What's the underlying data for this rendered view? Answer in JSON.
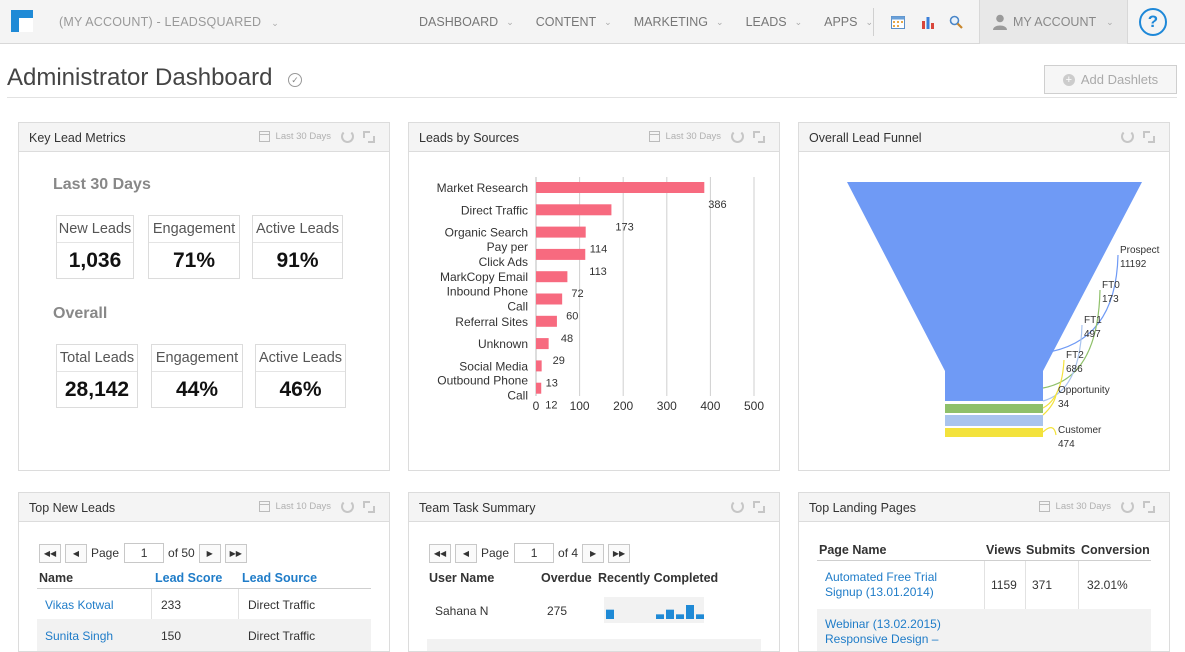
{
  "topbar": {
    "account_title": "(MY ACCOUNT) - LEADSQUARED",
    "nav": [
      "DASHBOARD",
      "CONTENT",
      "MARKETING",
      "LEADS",
      "APPS"
    ],
    "my_account": "MY ACCOUNT",
    "help": "?"
  },
  "page": {
    "title": "Administrator Dashboard",
    "add_dashlets": "Add Dashlets"
  },
  "key_metrics": {
    "title": "Key Lead Metrics",
    "range": "Last 30 Days",
    "section_recent": "Last 30 Days",
    "recent": [
      {
        "label": "New Leads",
        "value": "1,036"
      },
      {
        "label": "Engagement",
        "value": "71%"
      },
      {
        "label": "Active Leads",
        "value": "91%"
      }
    ],
    "section_overall": "Overall",
    "overall": [
      {
        "label": "Total Leads",
        "value": "28,142"
      },
      {
        "label": "Engagement",
        "value": "44%"
      },
      {
        "label": "Active Leads",
        "value": "46%"
      }
    ]
  },
  "sources": {
    "title": "Leads by Sources",
    "range": "Last 30 Days"
  },
  "funnel": {
    "title": "Overall Lead Funnel",
    "stage_colors": [
      "#6f9af5",
      "#8fc06a",
      "#a9c4ee",
      "#f3e23c"
    ]
  },
  "chart_data": [
    {
      "type": "bar",
      "orientation": "horizontal",
      "categories": [
        "Market Research",
        "Direct Traffic",
        "Organic Search",
        "Pay per Click Ads",
        "MarkCopy Email",
        "Inbound Phone Call",
        "Referral Sites",
        "Unknown",
        "Social Media",
        "Outbound Phone Call"
      ],
      "values": [
        386,
        173,
        114,
        113,
        72,
        60,
        48,
        29,
        13,
        12
      ],
      "xlim": [
        0,
        500
      ],
      "xticks": [
        0,
        100,
        200,
        300,
        400,
        500
      ],
      "grid": true,
      "bar_color": "#f76a7f"
    },
    {
      "type": "funnel",
      "stages": [
        {
          "label": "Prospect",
          "value": 11192
        },
        {
          "label": "FT0",
          "value": 173
        },
        {
          "label": "FT1",
          "value": 497
        },
        {
          "label": "FT2",
          "value": 686
        },
        {
          "label": "Opportunity",
          "value": 34
        },
        {
          "label": "Customer",
          "value": 474
        }
      ]
    }
  ],
  "new_leads": {
    "title": "Top New Leads",
    "range": "Last 10 Days",
    "pager": {
      "page_label": "Page",
      "page": "1",
      "of": "of 50"
    },
    "headers": [
      "Name",
      "Lead Score",
      "Lead Source"
    ],
    "rows": [
      {
        "name": "Vikas Kotwal",
        "score": "233",
        "source": "Direct Traffic"
      },
      {
        "name": "Sunita Singh",
        "score": "150",
        "source": "Direct Traffic"
      }
    ]
  },
  "tasks": {
    "title": "Team Task Summary",
    "pager": {
      "page_label": "Page",
      "page": "1",
      "of": "of 4"
    },
    "headers": [
      "User Name",
      "Overdue",
      "Recently Completed"
    ],
    "rows": [
      {
        "user": "Sahana N",
        "overdue": "275",
        "completed_trend": [
          2,
          0,
          0,
          0,
          0,
          1,
          2,
          1,
          3,
          1
        ]
      }
    ],
    "spark_color": "#1f8ad6"
  },
  "landing": {
    "title": "Top Landing Pages",
    "range": "Last 30 Days",
    "headers": [
      "Page Name",
      "Views",
      "Submits",
      "Conversion"
    ],
    "rows": [
      {
        "page": "Automated Free Trial Signup (13.01.2014)",
        "views": "1159",
        "submits": "371",
        "conversion": "32.01%"
      },
      {
        "page": "Webinar (13.02.2015) Responsive Design –",
        "views": "",
        "submits": "",
        "conversion": ""
      }
    ]
  }
}
